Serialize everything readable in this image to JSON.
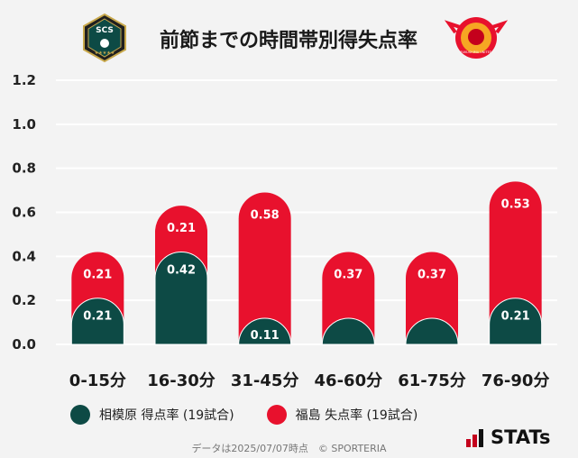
{
  "header": {
    "title": "前節までの時間帯別得失点率",
    "left_logo_text": "SCS",
    "right_logo_text": "FUKUSHIMA UNITED"
  },
  "colors": {
    "home": "#0d4a45",
    "away": "#e8112d",
    "grid": "#ffffff",
    "background": "#f3f3f3"
  },
  "chart_data": {
    "type": "bar",
    "stacked": true,
    "categories": [
      "0-15分",
      "16-30分",
      "31-45分",
      "46-60分",
      "61-75分",
      "76-90分"
    ],
    "series": [
      {
        "name": "相模原 得点率 (19試合)",
        "values": [
          0.21,
          0.42,
          0.11,
          0.05,
          0.05,
          0.21
        ],
        "labels": [
          "0.21",
          "0.42",
          "0.11",
          "",
          "",
          "0.21"
        ]
      },
      {
        "name": "福島 失点率 (19試合)",
        "values": [
          0.21,
          0.21,
          0.58,
          0.37,
          0.37,
          0.53
        ],
        "labels": [
          "0.21",
          "0.21",
          "0.58",
          "0.37",
          "0.37",
          "0.53"
        ]
      }
    ],
    "ylim": [
      0,
      1.2
    ],
    "yticks": [
      "0.0",
      "0.2",
      "0.4",
      "0.6",
      "0.8",
      "1.0",
      "1.2"
    ],
    "grid": true,
    "legend_position": "bottom-left"
  },
  "footer": {
    "note": "データは2025/07/07時点　© SPORTERIA",
    "brand": "STATs"
  }
}
